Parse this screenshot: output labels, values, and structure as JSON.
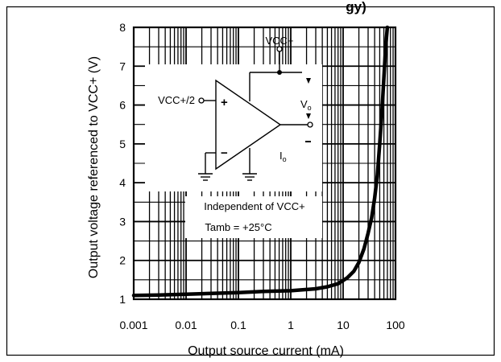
{
  "chart_data": {
    "type": "line",
    "title": "",
    "xlabel": "Output source current (mA)",
    "ylabel": "Output voltage referenced to VCC+ (V)",
    "xscale": "log",
    "xlim": [
      0.001,
      100
    ],
    "ylim": [
      1,
      8
    ],
    "grid": true,
    "x_ticks": [
      "0.001",
      "0.01",
      "0.1",
      "1",
      "10",
      "100"
    ],
    "y_ticks": [
      "1",
      "2",
      "3",
      "4",
      "5",
      "6",
      "7",
      "8"
    ],
    "series": [
      {
        "x": [
          0.001,
          0.003,
          0.01,
          0.03,
          0.1,
          0.3,
          1,
          3,
          5,
          8,
          12,
          16,
          20,
          25,
          30,
          35,
          40,
          45,
          50,
          55,
          60,
          65,
          70
        ],
        "y": [
          1.1,
          1.11,
          1.13,
          1.15,
          1.17,
          1.2,
          1.22,
          1.27,
          1.32,
          1.4,
          1.55,
          1.72,
          1.95,
          2.3,
          2.7,
          3.1,
          3.6,
          4.2,
          5.0,
          5.8,
          6.7,
          7.5,
          8.0
        ]
      }
    ],
    "annotations": [
      "Independent of VCC+",
      "Tamb = +25°C"
    ]
  },
  "schematic": {
    "supply_label": "VCC+",
    "input_label": "VCC+/2",
    "plus_sign": "+",
    "minus_sign": "−",
    "output_label": "V",
    "output_subscript": "o",
    "current_label": "I",
    "current_subscript": "o",
    "top_title_fragment": "gy)"
  },
  "colors": {
    "ink": "#000000",
    "background": "#ffffff"
  }
}
